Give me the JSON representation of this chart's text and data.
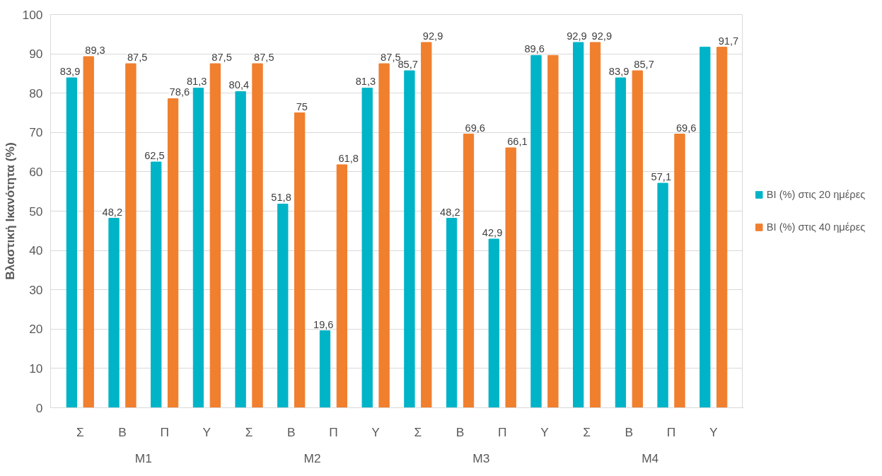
{
  "chart_data": {
    "type": "bar",
    "ylabel": "Βλαστική Ικανότητα (%)",
    "categories": [
      "Σ",
      "Β",
      "Π",
      "Υ",
      "Σ",
      "Β",
      "Π",
      "Υ",
      "Σ",
      "Β",
      "Π",
      "Υ",
      "Σ",
      "Β",
      "Π",
      "Υ"
    ],
    "annotations": [
      "M1",
      "M2",
      "M3",
      "M4"
    ],
    "series": [
      {
        "name": "BI (%) στις 20 ημέρες",
        "color": "#00b4c8",
        "values": [
          83.9,
          48.2,
          62.5,
          81.3,
          80.4,
          51.8,
          19.6,
          81.3,
          85.7,
          48.2,
          42.9,
          89.6,
          92.9,
          83.9,
          57.1,
          91.7
        ],
        "value_labels": [
          "83,9",
          "48,2",
          "62,5",
          "81,3",
          "80,4",
          "51,8",
          "19,6",
          "81,3",
          "85,7",
          "48,2",
          "42,9",
          "89,6",
          "92,9",
          "83,9",
          "57,1",
          null
        ]
      },
      {
        "name": "BI (%) στις 40 ημέρες",
        "color": "#f07f2e",
        "values": [
          89.3,
          87.5,
          78.6,
          87.5,
          87.5,
          75,
          61.8,
          87.5,
          92.9,
          69.6,
          66.1,
          89.6,
          92.9,
          85.7,
          69.6,
          91.7
        ],
        "value_labels": [
          "89,3",
          "87,5",
          "78,6",
          "87,5",
          "87,5",
          "75",
          "61,8",
          "87,5",
          "92,9",
          "69,6",
          "66,1",
          null,
          "92,9",
          "85,7",
          "69,6",
          "91,7"
        ]
      }
    ],
    "ylim": [
      0,
      100
    ],
    "yticks": [
      0,
      10,
      20,
      30,
      40,
      50,
      60,
      70,
      80,
      90,
      100
    ],
    "grid": "y",
    "legend": "right"
  }
}
